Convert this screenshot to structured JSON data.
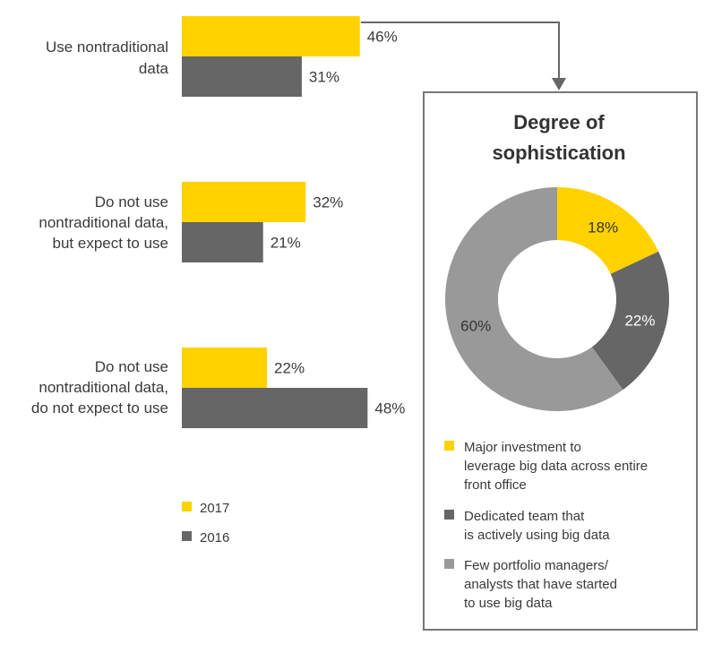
{
  "chart_data": [
    {
      "type": "bar",
      "orientation": "horizontal",
      "categories": [
        [
          "Use nontraditional",
          "data"
        ],
        [
          "Do not use",
          "nontraditional data,",
          "but expect to use"
        ],
        [
          "Do not use",
          "nontraditional data,",
          "do not expect to use"
        ]
      ],
      "series": [
        {
          "name": "2017",
          "values": [
            46,
            32,
            22
          ],
          "labels": [
            "46%",
            "32%",
            "22%"
          ]
        },
        {
          "name": "2016",
          "values": [
            31,
            21,
            48
          ],
          "labels": [
            "31%",
            "21%",
            "48%"
          ]
        }
      ],
      "colors": {
        "2017": "#ffd200",
        "2016": "#666666"
      },
      "legend": {
        "placement": "bottom-left",
        "entries": [
          "2017",
          "2016"
        ]
      },
      "grid": false
    },
    {
      "type": "pie",
      "style": "donut",
      "title": [
        "Degree of",
        "sophistication"
      ],
      "slices": [
        {
          "value": 18,
          "label": "18%",
          "color": "#ffd200",
          "label_color": "#333333",
          "legend": [
            "Major investment to",
            "leverage big data across entire",
            "front office"
          ]
        },
        {
          "value": 22,
          "label": "22%",
          "color": "#666666",
          "label_color": "#ffffff",
          "legend": [
            "Dedicated team that",
            "is actively using big data"
          ]
        },
        {
          "value": 60,
          "label": "60%",
          "color": "#999999",
          "label_color": "#333333",
          "legend": [
            "Few portfolio managers/",
            "analysts that have started",
            "to use big data"
          ]
        }
      ],
      "legend": {
        "placement": "bottom"
      }
    }
  ]
}
